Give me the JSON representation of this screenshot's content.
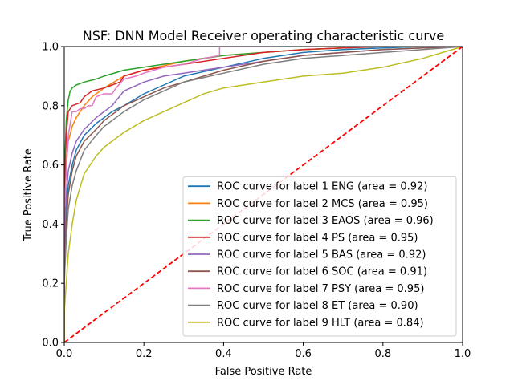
{
  "chart_data": {
    "type": "line",
    "title": "NSF: DNN Model Receiver operating characteristic curve",
    "xlabel": "False Positive Rate",
    "ylabel": "True Positive Rate",
    "xlim": [
      0,
      1
    ],
    "ylim": [
      0,
      1
    ],
    "x_ticks": [
      "0.0",
      "0.2",
      "0.4",
      "0.6",
      "0.8",
      "1.0"
    ],
    "y_ticks": [
      "0.0",
      "0.2",
      "0.4",
      "0.6",
      "0.8",
      "1.0"
    ],
    "grid": false,
    "legend_position": "lower-right",
    "diagonal": {
      "x": [
        0,
        1
      ],
      "y": [
        0,
        1
      ],
      "color": "#ff0000",
      "style": "dashed"
    },
    "series": [
      {
        "name": "ROC curve for label 1 ENG (area = 0.92)",
        "color": "#1f77b4",
        "x": [
          0,
          0,
          0.005,
          0.01,
          0.02,
          0.03,
          0.05,
          0.08,
          0.1,
          0.12,
          0.15,
          0.2,
          0.25,
          0.3,
          0.4,
          0.5,
          0.6,
          0.7,
          0.8,
          0.9,
          1.0
        ],
        "y": [
          0,
          0.3,
          0.45,
          0.53,
          0.6,
          0.65,
          0.7,
          0.74,
          0.76,
          0.78,
          0.8,
          0.84,
          0.87,
          0.9,
          0.93,
          0.96,
          0.98,
          0.99,
          0.995,
          1.0,
          1.0
        ]
      },
      {
        "name": "ROC curve for label 2 MCS (area = 0.95)",
        "color": "#ff7f0e",
        "x": [
          0,
          0,
          0.005,
          0.01,
          0.02,
          0.03,
          0.05,
          0.07,
          0.1,
          0.15,
          0.2,
          0.3,
          0.4,
          0.5,
          0.6,
          0.7,
          0.8,
          1.0
        ],
        "y": [
          0,
          0.45,
          0.6,
          0.68,
          0.73,
          0.76,
          0.8,
          0.83,
          0.86,
          0.9,
          0.92,
          0.95,
          0.97,
          0.98,
          0.99,
          0.995,
          1.0,
          1.0
        ]
      },
      {
        "name": "ROC curve for label 3 EAOS (area = 0.96)",
        "color": "#2ca02c",
        "x": [
          0,
          0,
          0.005,
          0.01,
          0.015,
          0.02,
          0.03,
          0.05,
          0.08,
          0.1,
          0.15,
          0.2,
          0.3,
          0.4,
          0.5,
          0.6,
          0.7,
          0.8,
          1.0
        ],
        "y": [
          0,
          0.55,
          0.75,
          0.82,
          0.85,
          0.86,
          0.87,
          0.88,
          0.89,
          0.9,
          0.92,
          0.93,
          0.95,
          0.97,
          0.98,
          0.99,
          0.995,
          1.0,
          1.0
        ]
      },
      {
        "name": "ROC curve for label 4 PS (area = 0.95)",
        "color": "#d62728",
        "x": [
          0,
          0,
          0.005,
          0.01,
          0.015,
          0.02,
          0.04,
          0.05,
          0.07,
          0.1,
          0.12,
          0.14,
          0.15,
          0.2,
          0.25,
          0.3,
          0.4,
          0.5,
          0.6,
          0.7,
          0.8,
          1.0
        ],
        "y": [
          0,
          0.5,
          0.7,
          0.78,
          0.79,
          0.8,
          0.81,
          0.83,
          0.85,
          0.86,
          0.87,
          0.88,
          0.9,
          0.92,
          0.93,
          0.94,
          0.96,
          0.98,
          0.99,
          0.995,
          1.0,
          1.0
        ]
      },
      {
        "name": "ROC curve for label 5 BAS (area = 0.92)",
        "color": "#9467bd",
        "x": [
          0,
          0,
          0.005,
          0.01,
          0.02,
          0.03,
          0.05,
          0.08,
          0.1,
          0.12,
          0.15,
          0.2,
          0.25,
          0.3,
          0.4,
          0.5,
          0.6,
          0.7,
          0.8,
          0.9,
          1.0
        ],
        "y": [
          0,
          0.35,
          0.5,
          0.58,
          0.64,
          0.68,
          0.72,
          0.76,
          0.78,
          0.8,
          0.85,
          0.88,
          0.9,
          0.91,
          0.93,
          0.95,
          0.97,
          0.98,
          0.99,
          0.995,
          1.0
        ]
      },
      {
        "name": "ROC curve for label 6 SOC (area = 0.91)",
        "color": "#8c564b",
        "x": [
          0,
          0,
          0.005,
          0.01,
          0.02,
          0.03,
          0.05,
          0.08,
          0.1,
          0.15,
          0.2,
          0.25,
          0.3,
          0.4,
          0.5,
          0.6,
          0.7,
          0.8,
          0.9,
          1.0
        ],
        "y": [
          0,
          0.25,
          0.4,
          0.5,
          0.58,
          0.63,
          0.68,
          0.72,
          0.75,
          0.8,
          0.83,
          0.86,
          0.88,
          0.92,
          0.95,
          0.97,
          0.98,
          0.99,
          0.995,
          1.0
        ]
      },
      {
        "name": "ROC curve for label 7 PSY (area = 0.95)",
        "color": "#e377c2",
        "x": [
          0,
          0,
          0.01,
          0.02,
          0.03,
          0.04,
          0.05,
          0.06,
          0.07,
          0.08,
          0.1,
          0.12,
          0.13,
          0.15,
          0.18,
          0.2,
          0.25,
          0.3,
          0.35,
          0.39,
          0.39,
          1.0
        ],
        "y": [
          0,
          0.45,
          0.7,
          0.78,
          0.78,
          0.79,
          0.79,
          0.8,
          0.8,
          0.83,
          0.84,
          0.84,
          0.86,
          0.89,
          0.9,
          0.91,
          0.93,
          0.94,
          0.96,
          0.97,
          1.0,
          1.0
        ]
      },
      {
        "name": "ROC curve for label 8 ET (area = 0.90)",
        "color": "#7f7f7f",
        "x": [
          0,
          0,
          0.005,
          0.01,
          0.02,
          0.03,
          0.05,
          0.08,
          0.1,
          0.15,
          0.2,
          0.25,
          0.3,
          0.4,
          0.5,
          0.6,
          0.7,
          0.8,
          0.9,
          1.0
        ],
        "y": [
          0,
          0.2,
          0.35,
          0.45,
          0.53,
          0.58,
          0.65,
          0.7,
          0.73,
          0.78,
          0.82,
          0.85,
          0.88,
          0.91,
          0.94,
          0.96,
          0.97,
          0.98,
          0.99,
          1.0
        ]
      },
      {
        "name": "ROC curve for label 9 HLT (area = 0.84)",
        "color": "#bcbd22",
        "x": [
          0,
          0,
          0.005,
          0.01,
          0.02,
          0.03,
          0.05,
          0.08,
          0.1,
          0.15,
          0.2,
          0.25,
          0.3,
          0.35,
          0.4,
          0.5,
          0.6,
          0.7,
          0.8,
          0.9,
          0.95,
          1.0
        ],
        "y": [
          0,
          0.1,
          0.2,
          0.3,
          0.4,
          0.48,
          0.57,
          0.63,
          0.66,
          0.71,
          0.75,
          0.78,
          0.81,
          0.84,
          0.86,
          0.88,
          0.9,
          0.91,
          0.93,
          0.96,
          0.98,
          1.0
        ]
      }
    ]
  }
}
